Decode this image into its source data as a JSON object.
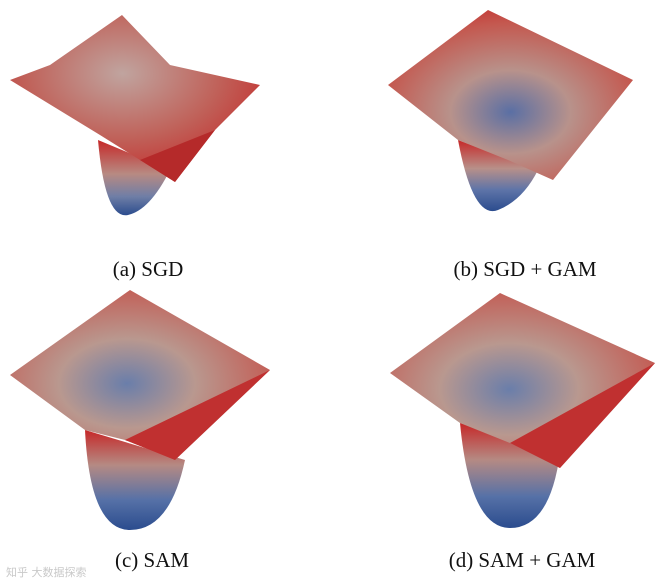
{
  "figure": {
    "panels": [
      {
        "caption": "(a) SGD"
      },
      {
        "caption": "(b) SGD + GAM"
      },
      {
        "caption": "(c) SAM"
      },
      {
        "caption": "(d) SAM + GAM"
      }
    ],
    "colors": {
      "rim": "#c42a2a",
      "mid": "#b98f87",
      "basin": "#2f4f8f",
      "deep": "#233c78"
    }
  },
  "watermark": "知乎 大数据探索"
}
